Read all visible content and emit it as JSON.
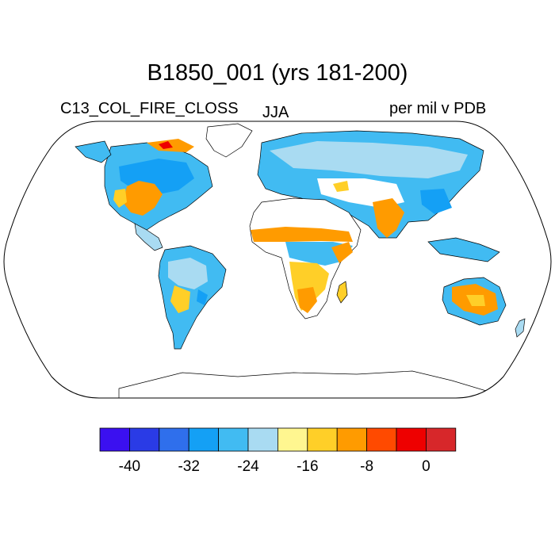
{
  "title": "B1850_001 (yrs 181-200)",
  "left_label": "C13_COL_FIRE_CLOSS",
  "center_label": "JJA",
  "right_label": "per mil v PDB",
  "colorbar": {
    "colors": [
      "#3b10f0",
      "#2a3be6",
      "#2f6fec",
      "#14a0f5",
      "#41bbf2",
      "#a9dbf2",
      "#fff690",
      "#ffcf28",
      "#ff9b00",
      "#ff4a00",
      "#ee0000",
      "#d7272a"
    ],
    "tick_labels": [
      "-40",
      "-32",
      "-24",
      "-16",
      "-8",
      "0"
    ]
  },
  "map": {
    "projection": "Robinson",
    "land_outline_color": "#000000",
    "ocean_color": "#ffffff"
  }
}
